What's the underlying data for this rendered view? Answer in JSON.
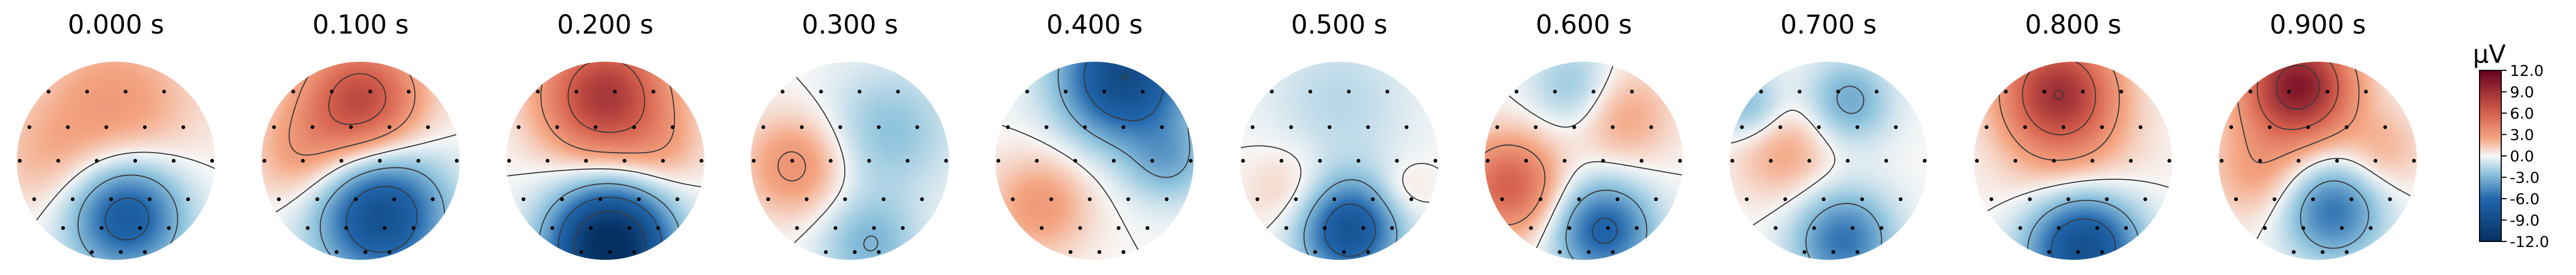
{
  "chart_data": {
    "type": "heatmap",
    "layout": "topomap-series",
    "maps": [
      {
        "title": "0.000 s",
        "t": 0.0,
        "blobs": [
          {
            "x": 0.0,
            "y": 0.55,
            "a": 3.0,
            "s": 0.55
          },
          {
            "x": 0.1,
            "y": -0.55,
            "a": -7.5,
            "s": 0.4
          },
          {
            "x": -0.7,
            "y": 0.0,
            "a": 1.5,
            "s": 0.4
          }
        ]
      },
      {
        "title": "0.100 s",
        "t": 0.1,
        "blobs": [
          {
            "x": 0.0,
            "y": 0.6,
            "a": 7.5,
            "s": 0.42
          },
          {
            "x": 0.2,
            "y": -0.55,
            "a": -8.5,
            "s": 0.45
          },
          {
            "x": -0.6,
            "y": 0.05,
            "a": 2.5,
            "s": 0.35
          }
        ]
      },
      {
        "title": "0.200 s",
        "t": 0.2,
        "blobs": [
          {
            "x": 0.0,
            "y": 0.65,
            "a": 8.5,
            "s": 0.45
          },
          {
            "x": 0.05,
            "y": -0.85,
            "a": -13.0,
            "s": 0.42
          },
          {
            "x": 0.6,
            "y": 0.1,
            "a": 1.5,
            "s": 0.3
          }
        ]
      },
      {
        "title": "0.300 s",
        "t": 0.3,
        "blobs": [
          {
            "x": -0.55,
            "y": -0.05,
            "a": 3.5,
            "s": 0.35
          },
          {
            "x": 0.4,
            "y": 0.3,
            "a": -2.5,
            "s": 0.45
          },
          {
            "x": 0.2,
            "y": -0.85,
            "a": -3.0,
            "s": 0.35
          }
        ]
      },
      {
        "title": "0.400 s",
        "t": 0.4,
        "blobs": [
          {
            "x": 0.3,
            "y": 0.85,
            "a": -9.0,
            "s": 0.45
          },
          {
            "x": -0.55,
            "y": -0.45,
            "a": 3.0,
            "s": 0.35
          },
          {
            "x": 0.75,
            "y": 0.0,
            "a": -3.0,
            "s": 0.3
          }
        ]
      },
      {
        "title": "0.500 s",
        "t": 0.5,
        "blobs": [
          {
            "x": 0.1,
            "y": -0.7,
            "a": -8.0,
            "s": 0.35
          },
          {
            "x": -0.5,
            "y": -0.3,
            "a": 1.5,
            "s": 0.3
          },
          {
            "x": 0.0,
            "y": 0.6,
            "a": -1.5,
            "s": 0.5
          },
          {
            "x": 0.65,
            "y": -0.3,
            "a": 1.2,
            "s": 0.2
          }
        ]
      },
      {
        "title": "0.600 s",
        "t": 0.6,
        "blobs": [
          {
            "x": -0.75,
            "y": -0.25,
            "a": 6.0,
            "s": 0.35
          },
          {
            "x": 0.2,
            "y": -0.7,
            "a": -6.5,
            "s": 0.35
          },
          {
            "x": 0.4,
            "y": 0.45,
            "a": 2.5,
            "s": 0.35
          },
          {
            "x": -0.1,
            "y": 0.75,
            "a": -2.5,
            "s": 0.3
          }
        ]
      },
      {
        "title": "0.700 s",
        "t": 0.7,
        "blobs": [
          {
            "x": -0.45,
            "y": 0.1,
            "a": 2.5,
            "s": 0.35
          },
          {
            "x": 0.15,
            "y": -0.8,
            "a": -5.5,
            "s": 0.35
          },
          {
            "x": 0.2,
            "y": 0.6,
            "a": -3.5,
            "s": 0.3
          },
          {
            "x": -0.8,
            "y": 0.55,
            "a": -3.0,
            "s": 0.25
          }
        ]
      },
      {
        "title": "0.800 s",
        "t": 0.8,
        "blobs": [
          {
            "x": -0.15,
            "y": 0.7,
            "a": 8.5,
            "s": 0.4
          },
          {
            "x": 0.1,
            "y": -0.85,
            "a": -9.0,
            "s": 0.4
          },
          {
            "x": 0.0,
            "y": -0.1,
            "a": 2.0,
            "s": 0.5
          }
        ]
      },
      {
        "title": "0.900 s",
        "t": 0.9,
        "blobs": [
          {
            "x": -0.2,
            "y": 0.75,
            "a": 10.5,
            "s": 0.38
          },
          {
            "x": 0.15,
            "y": -0.5,
            "a": -5.5,
            "s": 0.35
          },
          {
            "x": -0.6,
            "y": -0.1,
            "a": 2.5,
            "s": 0.35
          },
          {
            "x": 0.65,
            "y": 0.1,
            "a": 2.0,
            "s": 0.3
          }
        ]
      }
    ],
    "sensors": [
      [
        -0.7,
        0.72
      ],
      [
        -0.3,
        0.72
      ],
      [
        0.1,
        0.72
      ],
      [
        0.5,
        0.72
      ],
      [
        -0.9,
        0.35
      ],
      [
        -0.5,
        0.35
      ],
      [
        -0.1,
        0.35
      ],
      [
        0.3,
        0.35
      ],
      [
        0.7,
        0.35
      ],
      [
        -1.0,
        0.0
      ],
      [
        -0.6,
        0.0
      ],
      [
        -0.2,
        0.0
      ],
      [
        0.2,
        0.0
      ],
      [
        0.6,
        0.0
      ],
      [
        1.0,
        0.0
      ],
      [
        -0.85,
        -0.4
      ],
      [
        -0.45,
        -0.4
      ],
      [
        -0.05,
        -0.4
      ],
      [
        0.35,
        -0.4
      ],
      [
        0.75,
        -0.4
      ],
      [
        -0.55,
        -0.7
      ],
      [
        -0.15,
        -0.7
      ],
      [
        0.25,
        -0.7
      ],
      [
        0.55,
        -0.7
      ],
      [
        -0.25,
        -0.95
      ],
      [
        0.05,
        -0.95
      ],
      [
        0.3,
        -0.95
      ]
    ],
    "colorbar": {
      "label": "µV",
      "range": [
        -12.0,
        12.0
      ],
      "ticks": [
        "12.0",
        "9.0",
        "6.0",
        "3.0",
        "0.0",
        "-3.0",
        "-6.0",
        "-9.0",
        "-12.0"
      ],
      "tick_values": [
        12,
        9,
        6,
        3,
        0,
        -3,
        -6,
        -9,
        -12
      ]
    },
    "contour_levels": [
      -9,
      -6,
      -3,
      0,
      3,
      6,
      9
    ],
    "colors": {
      "neg_extreme": "#053061",
      "neg_mid": "#2166ac",
      "neg_light": "#92c5de",
      "zero": "#f7f7f7",
      "pos_light": "#f4a582",
      "pos_mid": "#d6604d",
      "pos_extreme": "#67001f",
      "contour": "#3a3a3a",
      "sensor": "#000000"
    }
  }
}
